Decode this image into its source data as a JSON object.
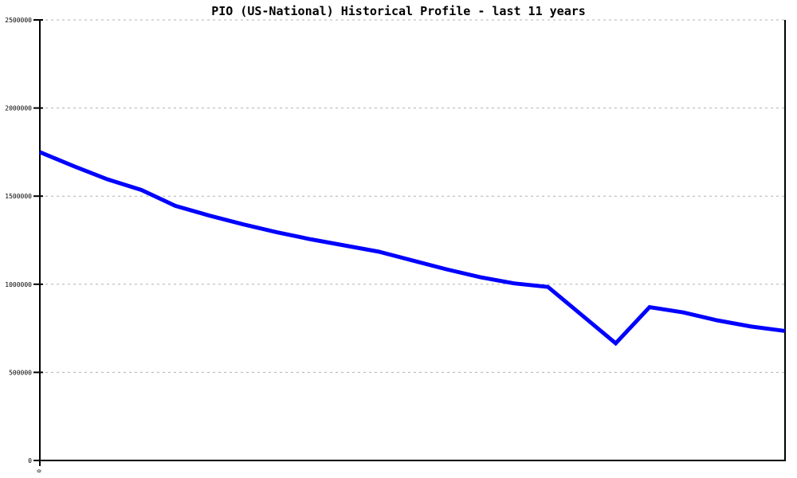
{
  "title": "PIO (US-National) Historical Profile - last 11 years",
  "colors": {
    "line": "#0000ff",
    "grid": "#b0b0b0",
    "axis": "#000000",
    "background": "#ffffff",
    "text": "#000000"
  },
  "y_axis": {
    "tick_labels": [
      "2500000",
      "2000000",
      "1500000",
      "1000000",
      "500000",
      "0"
    ],
    "tick_values": [
      2500000,
      2000000,
      1500000,
      1000000,
      500000,
      0
    ]
  },
  "x_axis": {
    "tick_labels": [
      "0"
    ],
    "tick_values": [
      0
    ]
  },
  "chart_data": {
    "type": "line",
    "title": "PIO (US-National) Historical Profile - last 11 years",
    "xlabel": "",
    "ylabel": "",
    "xlim": [
      0,
      11
    ],
    "ylim": [
      0,
      2500000
    ],
    "grid": "horizontal-dashed",
    "legend_position": "none",
    "x": [
      0,
      0.5,
      1,
      1.5,
      2,
      2.5,
      3,
      3.5,
      4,
      4.5,
      5,
      5.5,
      6,
      6.5,
      7,
      7.5,
      8,
      8.5,
      9,
      9.5,
      10,
      10.5,
      11
    ],
    "series": [
      {
        "name": "PIO (US-National)",
        "color": "#0000ff",
        "values": [
          1750000,
          1670000,
          1595000,
          1535000,
          1445000,
          1390000,
          1340000,
          1295000,
          1255000,
          1220000,
          1185000,
          1135000,
          1085000,
          1040000,
          1005000,
          985000,
          825000,
          665000,
          870000,
          840000,
          795000,
          760000,
          735000
        ]
      }
    ]
  }
}
